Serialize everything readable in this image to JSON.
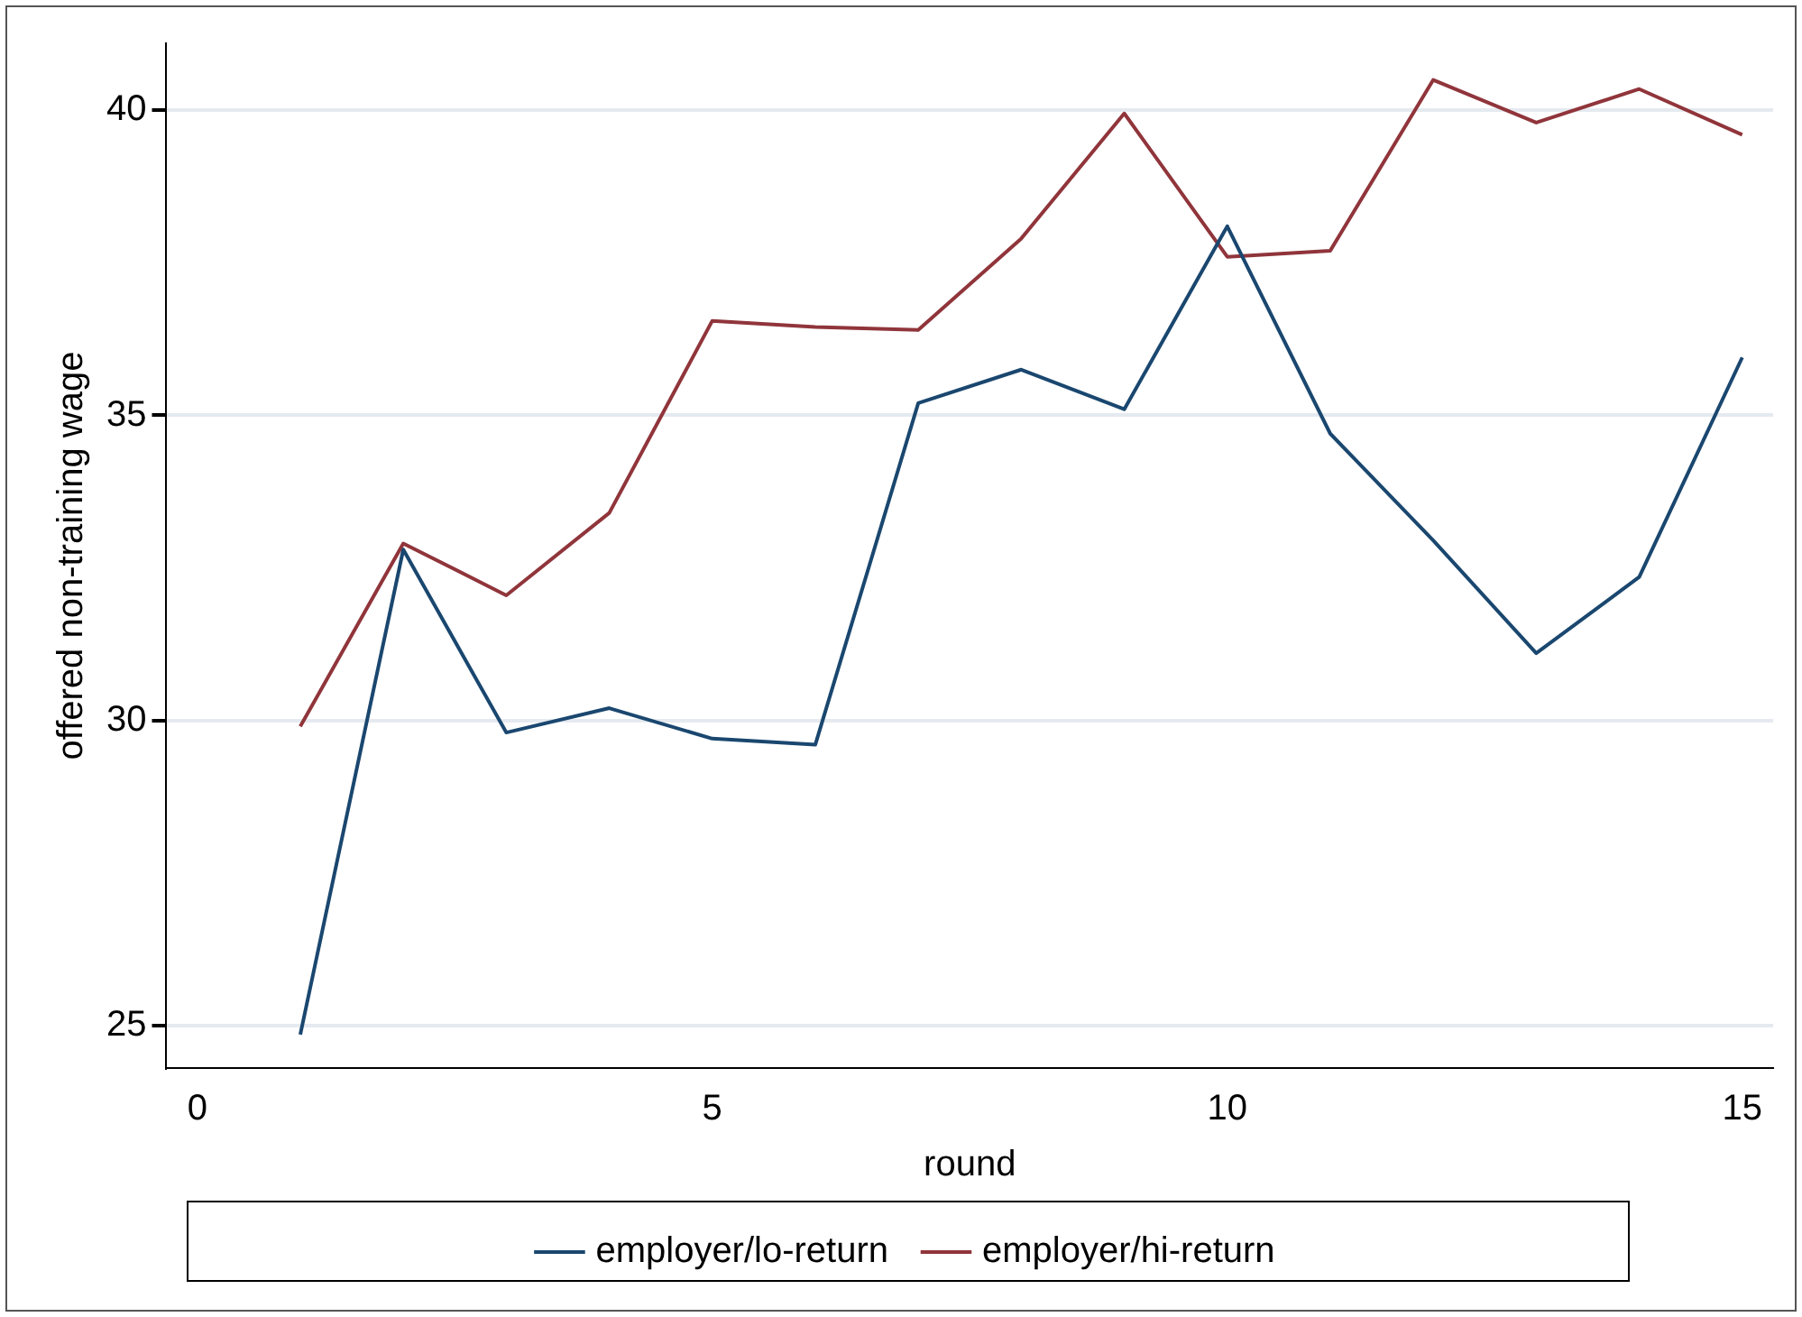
{
  "chart_data": {
    "type": "line",
    "xlabel": "round",
    "ylabel": "offered non-training wage",
    "x": [
      1,
      2,
      3,
      4,
      5,
      6,
      7,
      8,
      9,
      10,
      11,
      12,
      13,
      14,
      15
    ],
    "series": [
      {
        "name": "employer/lo-return",
        "color": "#1a476f",
        "values": [
          24.85,
          32.8,
          29.8,
          30.2,
          29.7,
          29.6,
          35.2,
          35.75,
          35.1,
          38.1,
          34.7,
          32.95,
          31.1,
          32.35,
          35.95
        ]
      },
      {
        "name": "employer/hi-return",
        "color": "#90353b",
        "values": [
          29.9,
          32.9,
          32.05,
          33.4,
          36.55,
          36.45,
          36.4,
          37.9,
          39.95,
          37.6,
          37.7,
          40.5,
          39.8,
          40.35,
          39.6
        ]
      }
    ],
    "xlim": [
      -0.3,
      15.3
    ],
    "xticks": [
      0,
      5,
      10,
      15
    ],
    "ylim": [
      24.3,
      41.1
    ],
    "yticks": [
      25,
      30,
      35,
      40
    ],
    "grid": "y",
    "legend": "bottom",
    "marker": "none",
    "line_style": "solid"
  }
}
